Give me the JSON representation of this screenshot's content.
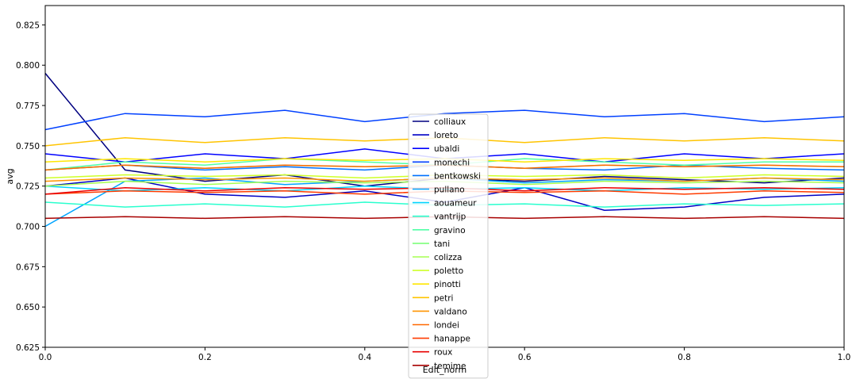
{
  "chart_data": {
    "type": "line",
    "xlabel": "Edit_norm",
    "ylabel": "avg",
    "xlim": [
      0.0,
      1.0
    ],
    "ylim": [
      0.625,
      0.837
    ],
    "x_ticks": [
      "0.0",
      "0.2",
      "0.4",
      "0.6",
      "0.8",
      "1.0"
    ],
    "y_ticks": [
      "0.625",
      "0.650",
      "0.675",
      "0.700",
      "0.725",
      "0.750",
      "0.775",
      "0.800",
      "0.825"
    ],
    "grid": false,
    "legend_position": "center",
    "x": [
      0.0,
      0.1,
      0.2,
      0.3,
      0.4,
      0.5,
      0.6,
      0.7,
      0.8,
      0.9,
      1.0
    ],
    "series": [
      {
        "name": "colliaux",
        "color": "#000080",
        "values": [
          0.795,
          0.735,
          0.728,
          0.732,
          0.725,
          0.73,
          0.728,
          0.731,
          0.729,
          0.727,
          0.73
        ]
      },
      {
        "name": "loreto",
        "color": "#0000c4",
        "values": [
          0.725,
          0.73,
          0.72,
          0.718,
          0.722,
          0.715,
          0.724,
          0.71,
          0.712,
          0.718,
          0.72
        ]
      },
      {
        "name": "ubaldi",
        "color": "#0000ff",
        "values": [
          0.745,
          0.74,
          0.745,
          0.742,
          0.748,
          0.742,
          0.745,
          0.74,
          0.745,
          0.742,
          0.745
        ]
      },
      {
        "name": "monechi",
        "color": "#0040ff",
        "values": [
          0.76,
          0.77,
          0.768,
          0.772,
          0.765,
          0.77,
          0.772,
          0.768,
          0.77,
          0.765,
          0.768
        ]
      },
      {
        "name": "bentkowski",
        "color": "#0070ff",
        "values": [
          0.735,
          0.738,
          0.735,
          0.737,
          0.735,
          0.738,
          0.736,
          0.735,
          0.738,
          0.736,
          0.735
        ]
      },
      {
        "name": "pullano",
        "color": "#00a4ff",
        "values": [
          0.7,
          0.728,
          0.73,
          0.726,
          0.728,
          0.73,
          0.727,
          0.729,
          0.728,
          0.73,
          0.728
        ]
      },
      {
        "name": "aouameur",
        "color": "#00d4ff",
        "values": [
          0.725,
          0.722,
          0.724,
          0.722,
          0.725,
          0.723,
          0.724,
          0.722,
          0.724,
          0.723,
          0.724
        ]
      },
      {
        "name": "vantrijp",
        "color": "#29ffce",
        "values": [
          0.715,
          0.712,
          0.714,
          0.712,
          0.715,
          0.713,
          0.714,
          0.712,
          0.714,
          0.713,
          0.714
        ]
      },
      {
        "name": "gravino",
        "color": "#50ffa6",
        "values": [
          0.735,
          0.74,
          0.738,
          0.742,
          0.74,
          0.738,
          0.742,
          0.74,
          0.738,
          0.74,
          0.74
        ]
      },
      {
        "name": "tani",
        "color": "#7dff7a",
        "values": [
          0.735,
          0.738,
          0.736,
          0.738,
          0.737,
          0.738,
          0.736,
          0.738,
          0.737,
          0.738,
          0.737
        ]
      },
      {
        "name": "colizza",
        "color": "#a6ff50",
        "values": [
          0.725,
          0.728,
          0.726,
          0.728,
          0.727,
          0.728,
          0.726,
          0.728,
          0.727,
          0.728,
          0.727
        ]
      },
      {
        "name": "poletto",
        "color": "#ceff29",
        "values": [
          0.73,
          0.732,
          0.731,
          0.732,
          0.73,
          0.732,
          0.731,
          0.732,
          0.73,
          0.732,
          0.731
        ]
      },
      {
        "name": "pinotti",
        "color": "#ffe600",
        "values": [
          0.74,
          0.742,
          0.74,
          0.742,
          0.741,
          0.742,
          0.74,
          0.742,
          0.741,
          0.742,
          0.741
        ]
      },
      {
        "name": "petri",
        "color": "#ffc400",
        "values": [
          0.75,
          0.755,
          0.752,
          0.755,
          0.753,
          0.755,
          0.752,
          0.755,
          0.753,
          0.755,
          0.753
        ]
      },
      {
        "name": "valdano",
        "color": "#ff9400",
        "values": [
          0.728,
          0.73,
          0.729,
          0.73,
          0.728,
          0.73,
          0.729,
          0.73,
          0.728,
          0.73,
          0.729
        ]
      },
      {
        "name": "londei",
        "color": "#ff6800",
        "values": [
          0.735,
          0.738,
          0.736,
          0.738,
          0.737,
          0.738,
          0.736,
          0.738,
          0.737,
          0.738,
          0.737
        ]
      },
      {
        "name": "hanappe",
        "color": "#ff3b00",
        "values": [
          0.72,
          0.722,
          0.721,
          0.722,
          0.72,
          0.722,
          0.721,
          0.722,
          0.72,
          0.722,
          0.721
        ]
      },
      {
        "name": "roux",
        "color": "#e80000",
        "values": [
          0.72,
          0.724,
          0.722,
          0.724,
          0.723,
          0.724,
          0.722,
          0.724,
          0.723,
          0.724,
          0.723
        ]
      },
      {
        "name": "temime",
        "color": "#a80000",
        "values": [
          0.705,
          0.706,
          0.705,
          0.706,
          0.705,
          0.706,
          0.705,
          0.706,
          0.705,
          0.706,
          0.705
        ]
      }
    ]
  }
}
